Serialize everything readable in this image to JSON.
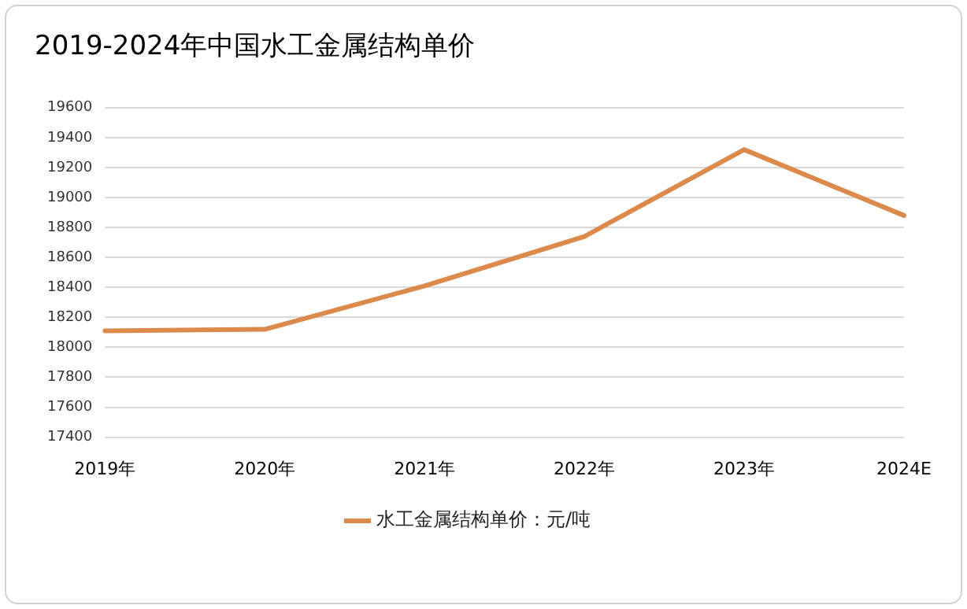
{
  "chart_data": {
    "type": "line",
    "title": "2019-2024年中国水工金属结构单价",
    "categories": [
      "2019年",
      "2020年",
      "2021年",
      "2022年",
      "2023年",
      "2024E"
    ],
    "series": [
      {
        "name": "水工金属结构单价：元/吨",
        "color": "#dc8a4c",
        "values": [
          18110,
          18120,
          18410,
          18740,
          19320,
          18880
        ]
      }
    ],
    "ylim": [
      17400,
      19600
    ],
    "yticks": [
      17400,
      17600,
      17800,
      18000,
      18200,
      18400,
      18600,
      18800,
      19000,
      19200,
      19400,
      19600
    ],
    "grid": "y",
    "legend": "bottom",
    "marker": "none",
    "line_style": "solid"
  }
}
